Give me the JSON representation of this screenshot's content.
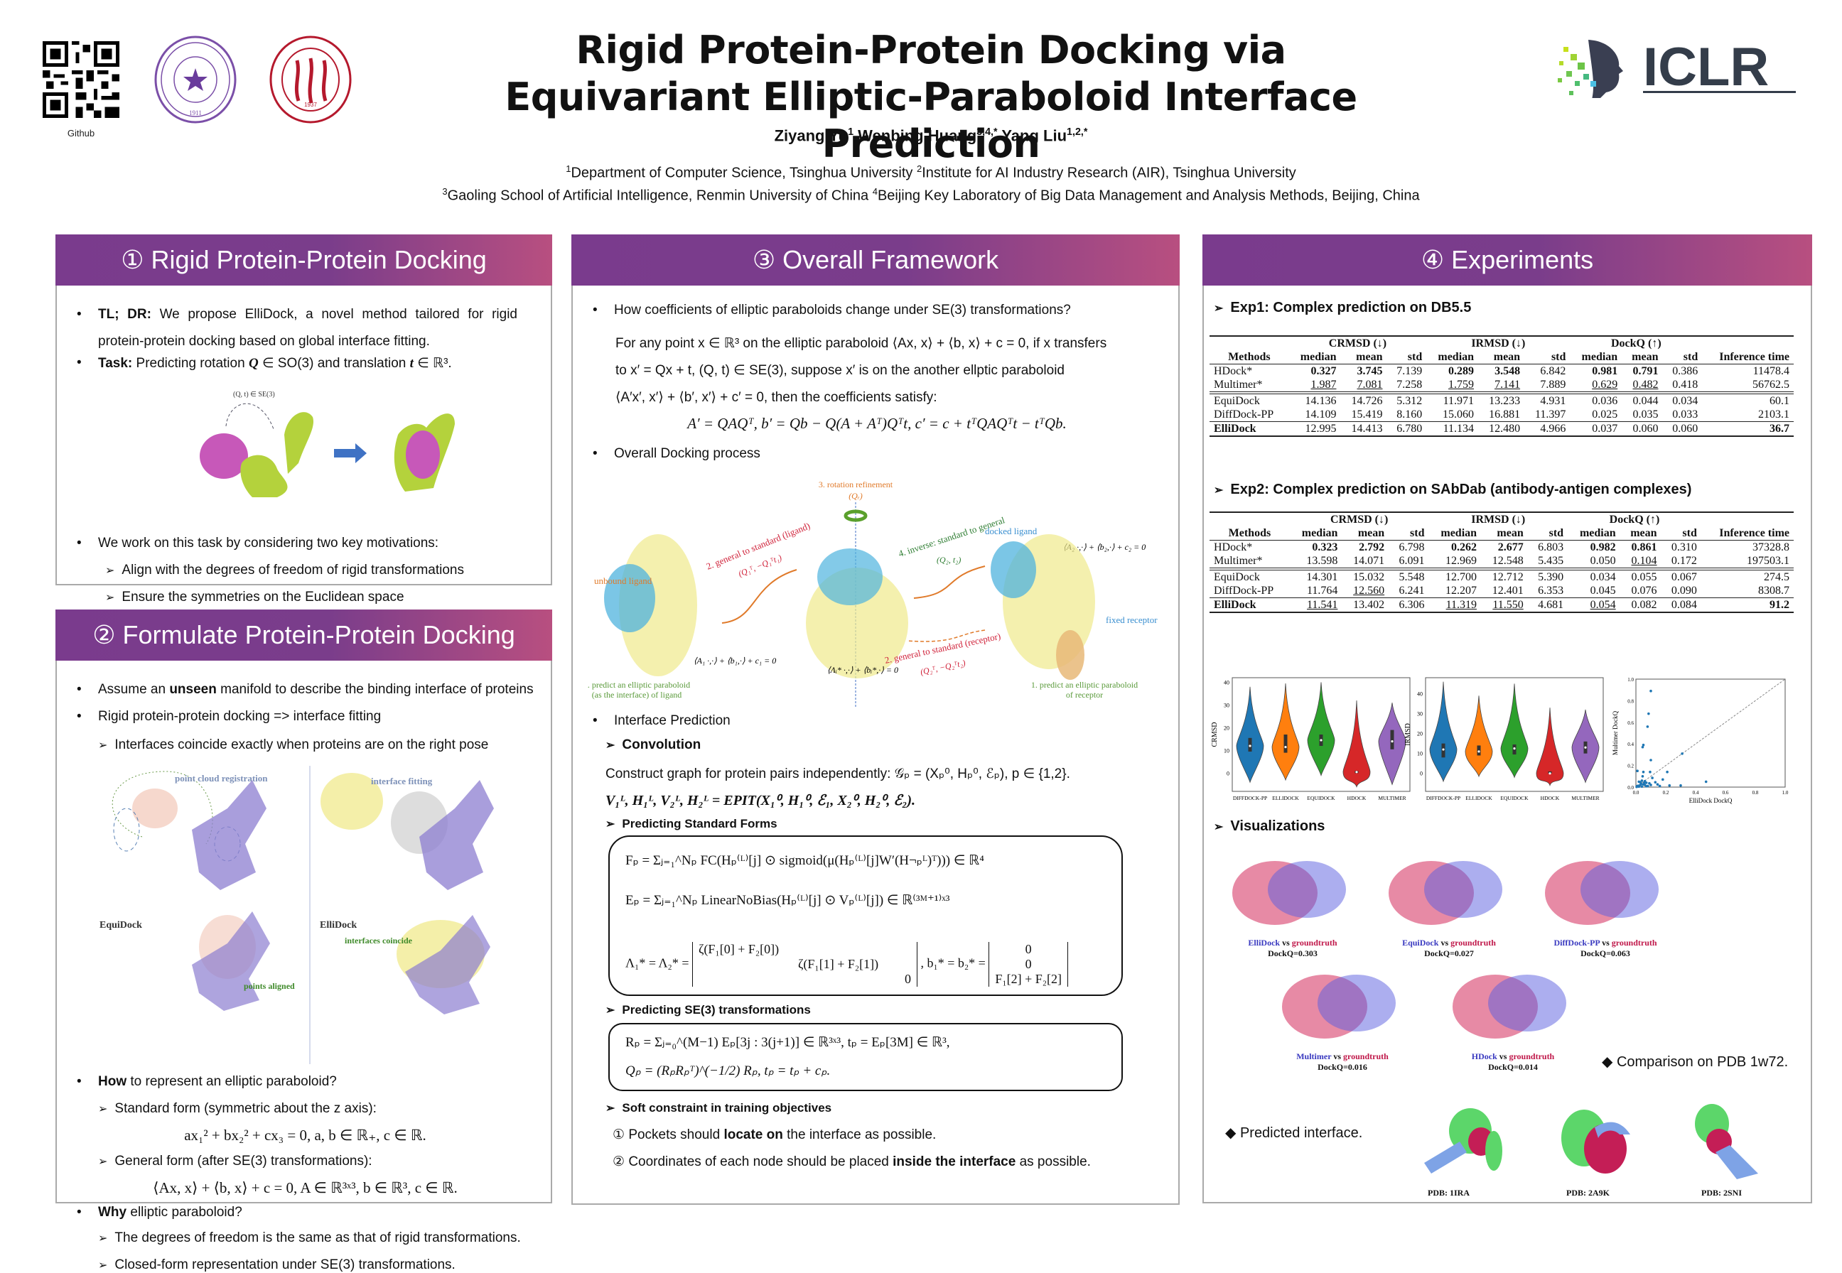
{
  "header": {
    "qr_label": "Github",
    "title_line1": "Rigid Protein-Protein Docking via",
    "title_line2": "Equivariant Elliptic-Paraboloid Interface Prediction",
    "authors": [
      {
        "name": "Ziyang Yu",
        "sup": "1"
      },
      {
        "name": "Wenbing Huang",
        "sup": "3,4,*"
      },
      {
        "name": "Yang Liu",
        "sup": "1,2,*"
      }
    ],
    "affiliations_line1": [
      {
        "sup": "1",
        "text": "Department of Computer Science, Tsinghua University "
      },
      {
        "sup": "2",
        "text": "Institute for AI Industry Research (AIR), Tsinghua University"
      }
    ],
    "affiliations_line2": [
      {
        "sup": "3",
        "text": "Gaoling School of Artificial Intelligence, Renmin University of China "
      },
      {
        "sup": "4",
        "text": "Beijing Key Laboratory of Big Data Management and Analysis Methods, Beijing, China"
      }
    ],
    "logos": {
      "tsinghua_year": "1911",
      "renmin_year": "1937",
      "iclr": "ICLR"
    }
  },
  "panel1": {
    "title": "① Rigid Protein-Protein Docking",
    "tldr_label": "TL; DR:",
    "tldr_text": "We propose ElliDock, a novel method tailored for rigid protein-protein docking based on global interface fitting.",
    "task_label": "Task:",
    "task_text_a": "Predicting rotation ",
    "task_Q": "Q",
    "task_text_b": " ∈ SO(3) and translation ",
    "task_t": "t",
    "task_text_c": " ∈ ℝ³.",
    "figure_annotation": "(Q, t) ∈ SE(3)",
    "motivations_intro": "We work on this task by considering two key motivations:",
    "motivations": [
      "Align with the degrees of freedom of rigid transformations",
      "Ensure the symmetries on the Euclidean space"
    ]
  },
  "panel2": {
    "title": "② Formulate Protein-Protein Docking",
    "bullet1_a": "Assume an ",
    "bullet1_bold": "unseen",
    "bullet1_b": " manifold to describe the binding interface of proteins",
    "bullet2": "Rigid protein-protein docking => interface fitting",
    "sub2": "Interfaces coincide exactly when proteins are on the right pose",
    "figure_labels": {
      "point_cloud": "point cloud registration",
      "interface_fitting": "interface fitting",
      "equidock": "EquiDock",
      "ellidock": "ElliDock",
      "points_aligned": "points aligned",
      "interfaces_coincide": "interfaces coincide"
    },
    "how_bold": "How",
    "how_text": " to represent an elliptic paraboloid?",
    "standard_form_label": "Standard form (symmetric about the z axis):",
    "standard_form_eq": "ax₁² + bx₂² + cx₃ = 0, a, b ∈ ℝ₊, c ∈ ℝ.",
    "general_form_label": "General form (after SE(3) transformations):",
    "general_form_eq": "⟨Ax, x⟩ + ⟨b, x⟩ + c = 0, A ∈ ℝ³ˣ³, b ∈ ℝ³, c ∈ ℝ.",
    "why_bold": "Why",
    "why_text": " elliptic paraboloid?",
    "why_items": [
      "The degrees of freedom is the same as that of rigid transformations.",
      "Closed-form representation under SE(3) transformations."
    ]
  },
  "panel3": {
    "title": "③ Overall Framework",
    "q1": "How coefficients of elliptic paraboloids change under SE(3) transformations?",
    "para_line1": "For any point x ∈ ℝ³ on the elliptic paraboloid ⟨Ax, x⟩ + ⟨b, x⟩ + c = 0, if x transfers",
    "para_line2": "to x′ = Qx + t, (Q, t) ∈ SE(3), suppose x′ is on the another ellptic paraboloid",
    "para_line3": "⟨A′x′, x′⟩ + ⟨b′, x′⟩ + c′ = 0, then the coefficients satisfy:",
    "coef_eq": "A′ = QAQᵀ, b′ = Qb − Q(A + Aᵀ)Qᵀt, c′ = c + tᵀQAQᵀt − tᵀQb.",
    "docking_process": "Overall Docking process",
    "diagram": {
      "rotation_refinement": "3. rotation refinement",
      "rotation_symbol": "(Qᵣ)",
      "unbound_ligand": "unbound ligand",
      "step2_ligand": "2. general to standard (ligand)",
      "step2_ligand_sym": "(Q₁ᵀ, −Q₁ᵀt₁)",
      "step4": "4. inverse: standard to general",
      "step4_sym": "(Q₂, t₂)",
      "docked_ligand": "docked ligand",
      "eq_right": "⟨A₂ ·,·⟩ + ⟨b₂,·⟩ + c₂ = 0",
      "fixed_receptor": "fixed receptor",
      "step2_receptor": "2. general to standard (receptor)",
      "step2_receptor_sym": "(Q₂ᵀ, −Q₂ᵀt₂)",
      "eq_left": "⟨A₁ ·,·⟩ + ⟨b₁,·⟩ + c₁ = 0",
      "eq_mid": "⟨Λᵢ* ·,·⟩ + ⟨bᵢ*,·⟩ = 0",
      "step1_ligand_a": "1. predict an elliptic paraboloid",
      "step1_ligand_b": "(as the interface) of ligand",
      "step1_receptor_a": "1. predict an elliptic paraboloid",
      "step1_receptor_b": "of receptor"
    },
    "interface_prediction": "Interface Prediction",
    "convolution": "Convolution",
    "construct_graph": "Construct graph for protein pairs independently: 𝒢ₚ = (Xₚ⁰, Hₚ⁰, ℰₚ), p ∈ {1,2}.",
    "epit_eq": "V₁ᴸ, H₁ᴸ, V₂ᴸ, H₂ᴸ = EPIT(X₁⁰, H₁⁰, ℰ₁, X₂⁰, H₂⁰, ℰ₂).",
    "predicting_standard_forms": "Predicting Standard Forms",
    "sf_eq1": "Fₚ = Σⱼ₌₁^Nₚ FC(Hₚ⁽ᴸ⁾[j] ⊙ sigmoid(μ(Hₚ⁽ᴸ⁾[j]W′(H¬ₚᴸ)ᵀ))) ∈ ℝ⁴",
    "sf_eq2": "Eₚ = Σⱼ₌₁^Nₚ LinearNoBias(Hₚ⁽ᴸ⁾[j] ⊙ Vₚ⁽ᴸ⁾[j]) ∈ ℝ⁽³ᴹ⁺¹⁾ˣ³",
    "sf_eq3_lhs": "Λ₁* = Λ₂* =",
    "sf_eq3_diag": [
      "ζ(F₁[0] + F₂[0])",
      "ζ(F₁[1] + F₂[1])",
      "0"
    ],
    "sf_eq3_b_lhs": ", b₁* = b₂* =",
    "sf_eq3_bvec": [
      "0",
      "0",
      "F₁[2] + F₂[2]"
    ],
    "predicting_se3": "Predicting SE(3) transformations",
    "se3_eq1": "Rₚ = Σⱼ₌₀^(M−1) Eₚ[3j : 3(j+1)] ∈ ℝ³ˣ³, tₚ = Eₚ[3M] ∈ ℝ³,",
    "se3_eq2": "Qₚ = (RₚRₚᵀ)^(−1/2) Rₚ, tₚ = tₚ + cₚ.",
    "soft_constraint": "Soft constraint in training objectives",
    "constraint1_a": "Pockets should ",
    "constraint1_bold": "locate on",
    "constraint1_b": " the interface as possible.",
    "constraint2_a": "Coordinates of each node should be placed ",
    "constraint2_bold": "inside the interface",
    "constraint2_b": " as possible."
  },
  "panel4": {
    "title": "④ Experiments",
    "exp1_title": "Exp1: Complex prediction on DB5.5",
    "exp2_title": "Exp2: Complex prediction on SAbDab (antibody-antigen complexes)",
    "table_groups": [
      "CRMSD (↓)",
      "IRMSD (↓)",
      "DockQ (↑)"
    ],
    "table_cols": [
      "Methods",
      "median",
      "mean",
      "std",
      "median",
      "mean",
      "std",
      "median",
      "mean",
      "std",
      "Inference time"
    ],
    "exp1_rows": [
      {
        "method": "HDock*",
        "vals": [
          "0.327",
          "3.745",
          "7.139",
          "0.289",
          "3.548",
          "6.842",
          "0.981",
          "0.791",
          "0.386",
          "11478.4"
        ],
        "bold": [
          0,
          1,
          3,
          4,
          6,
          7
        ],
        "under": []
      },
      {
        "method": "Multimer*",
        "vals": [
          "1.987",
          "7.081",
          "7.258",
          "1.759",
          "7.141",
          "7.889",
          "0.629",
          "0.482",
          "0.418",
          "56762.5"
        ],
        "bold": [],
        "under": [
          0,
          1,
          3,
          4,
          6,
          7
        ]
      },
      {
        "method": "EquiDock",
        "vals": [
          "14.136",
          "14.726",
          "5.312",
          "11.971",
          "13.233",
          "4.931",
          "0.036",
          "0.044",
          "0.034",
          "60.1"
        ],
        "bold": [],
        "under": []
      },
      {
        "method": "DiffDock-PP",
        "vals": [
          "14.109",
          "15.419",
          "8.160",
          "15.060",
          "16.881",
          "11.397",
          "0.025",
          "0.035",
          "0.033",
          "2103.1"
        ],
        "bold": [],
        "under": []
      },
      {
        "method": "ElliDock",
        "vals": [
          "12.995",
          "14.413",
          "6.780",
          "11.134",
          "12.480",
          "4.966",
          "0.037",
          "0.060",
          "0.060",
          "36.7"
        ],
        "bold": [
          9
        ],
        "under": [],
        "method_bold": true
      }
    ],
    "exp2_rows": [
      {
        "method": "HDock*",
        "vals": [
          "0.323",
          "2.792",
          "6.798",
          "0.262",
          "2.677",
          "6.803",
          "0.982",
          "0.861",
          "0.310",
          "37328.8"
        ],
        "bold": [
          0,
          1,
          3,
          4,
          6,
          7
        ],
        "under": []
      },
      {
        "method": "Multimer*",
        "vals": [
          "13.598",
          "14.071",
          "6.091",
          "12.969",
          "12.548",
          "5.435",
          "0.050",
          "0.104",
          "0.172",
          "197503.1"
        ],
        "bold": [],
        "under": [
          7
        ]
      },
      {
        "method": "EquiDock",
        "vals": [
          "14.301",
          "15.032",
          "5.548",
          "12.700",
          "12.712",
          "5.390",
          "0.034",
          "0.055",
          "0.067",
          "274.5"
        ],
        "bold": [],
        "under": []
      },
      {
        "method": "DiffDock-PP",
        "vals": [
          "11.764",
          "12.560",
          "6.241",
          "12.207",
          "12.401",
          "6.353",
          "0.045",
          "0.076",
          "0.090",
          "8308.7"
        ],
        "bold": [],
        "under": [
          1
        ]
      },
      {
        "method": "ElliDock",
        "vals": [
          "11.541",
          "13.402",
          "6.306",
          "11.319",
          "11.550",
          "4.681",
          "0.054",
          "0.082",
          "0.084",
          "91.2"
        ],
        "bold": [
          9
        ],
        "under": [
          0,
          3,
          4,
          6
        ],
        "method_bold": true
      }
    ],
    "visualizations_title": "Visualizations",
    "comparisons": [
      {
        "model": "ElliDock",
        "vs": " vs ",
        "gt": "groundtruth",
        "dockq": "DockQ=0.303"
      },
      {
        "model": "EquiDock",
        "vs": " vs ",
        "gt": "groundtruth",
        "dockq": "DockQ=0.027"
      },
      {
        "model": "DiffDock-PP",
        "vs": " vs ",
        "gt": "groundtruth",
        "dockq": "DockQ=0.063"
      },
      {
        "model": "Multimer",
        "vs": " vs ",
        "gt": "groundtruth",
        "dockq": "DockQ=0.016"
      },
      {
        "model": "HDock",
        "vs": " vs ",
        "gt": "groundtruth",
        "dockq": "DockQ=0.014"
      }
    ],
    "comparison_note": "◆ Comparison on PDB 1w72.",
    "predicted_interface_note": "◆ Predicted interface.",
    "pdb_labels": [
      "PDB: 1IRA",
      "PDB: 2A9K",
      "PDB: 2SNI"
    ]
  },
  "chart_data": [
    {
      "type": "violin",
      "title": "",
      "xlabel": "",
      "ylabel": "CRMSD",
      "categories": [
        "DIFFDOCK-PP",
        "ELLIDOCK",
        "EQUIDOCK",
        "HDOCK",
        "MULTIMER"
      ],
      "colors": [
        "#1f77b4",
        "#ff7f0e",
        "#2ca02c",
        "#d62728",
        "#9467bd"
      ],
      "medians": [
        12,
        11.5,
        14.5,
        0.5,
        14
      ],
      "q1": [
        9.5,
        9,
        12,
        0,
        10.5
      ],
      "q3": [
        15.5,
        17,
        17,
        1,
        19
      ],
      "min": [
        -4,
        -3,
        -1,
        -6,
        -5
      ],
      "max": [
        38,
        39.5,
        40,
        32,
        31
      ],
      "yticks": [
        0,
        10,
        20,
        30,
        40
      ],
      "ylim": [
        -8,
        42
      ]
    },
    {
      "type": "violin",
      "title": "",
      "xlabel": "",
      "ylabel": "IRMSD",
      "categories": [
        "DIFFDOCK-PP",
        "ELLIDOCK",
        "EQUIDOCK",
        "HDOCK",
        "MULTIMER"
      ],
      "colors": [
        "#1f77b4",
        "#ff7f0e",
        "#2ca02c",
        "#d62728",
        "#9467bd"
      ],
      "medians": [
        12,
        11,
        12.5,
        0,
        13
      ],
      "q1": [
        8,
        9,
        9.5,
        0,
        10
      ],
      "q3": [
        15,
        14,
        14.5,
        1,
        16
      ],
      "min": [
        -4,
        -1.5,
        -2,
        -6,
        -4.5
      ],
      "max": [
        46,
        39,
        45,
        33,
        32
      ],
      "yticks": [
        0,
        10,
        20,
        30,
        40
      ],
      "ylim": [
        -9,
        48
      ]
    },
    {
      "type": "scatter",
      "title": "",
      "xlabel": "ElliDock DockQ",
      "ylabel": "Multimer DockQ",
      "xlim": [
        0,
        1
      ],
      "ylim": [
        0,
        1
      ],
      "xticks": [
        0.0,
        0.2,
        0.4,
        0.6,
        0.8,
        1.0
      ],
      "yticks": [
        0.0,
        0.2,
        0.4,
        0.6,
        0.8,
        1.0
      ],
      "diagonal": true,
      "points": [
        [
          0.1,
          0.89
        ],
        [
          0.085,
          0.68
        ],
        [
          0.078,
          0.56
        ],
        [
          0.045,
          0.37
        ],
        [
          0.05,
          0.39
        ],
        [
          0.1,
          0.25
        ],
        [
          0.31,
          0.31
        ],
        [
          0.01,
          0.15
        ],
        [
          0.05,
          0.14
        ],
        [
          0.095,
          0.14
        ],
        [
          0.21,
          0.14
        ],
        [
          0.045,
          0.1
        ],
        [
          0.11,
          0.085
        ],
        [
          0.18,
          0.07
        ],
        [
          0.47,
          0.05
        ],
        [
          0.13,
          0.045
        ],
        [
          0.04,
          0.06
        ],
        [
          0.06,
          0.055
        ],
        [
          0.02,
          0.05
        ],
        [
          0.03,
          0.045
        ],
        [
          0.07,
          0.04
        ],
        [
          0.09,
          0.035
        ],
        [
          0.145,
          0.025
        ],
        [
          0.03,
          0.02
        ],
        [
          0.05,
          0.025
        ],
        [
          0.06,
          0.02
        ],
        [
          0.1,
          0.02
        ],
        [
          0.16,
          0.01
        ],
        [
          0.225,
          0.015
        ],
        [
          0.3,
          0.015
        ],
        [
          0.01,
          0.01
        ],
        [
          0.02,
          0.005
        ],
        [
          0.04,
          0.005
        ],
        [
          0.07,
          0.008
        ],
        [
          0.005,
          0.002
        ],
        [
          0.015,
          0.012
        ],
        [
          0.035,
          0.03
        ],
        [
          0.08,
          0.01
        ],
        [
          0.055,
          0.04
        ]
      ]
    }
  ]
}
